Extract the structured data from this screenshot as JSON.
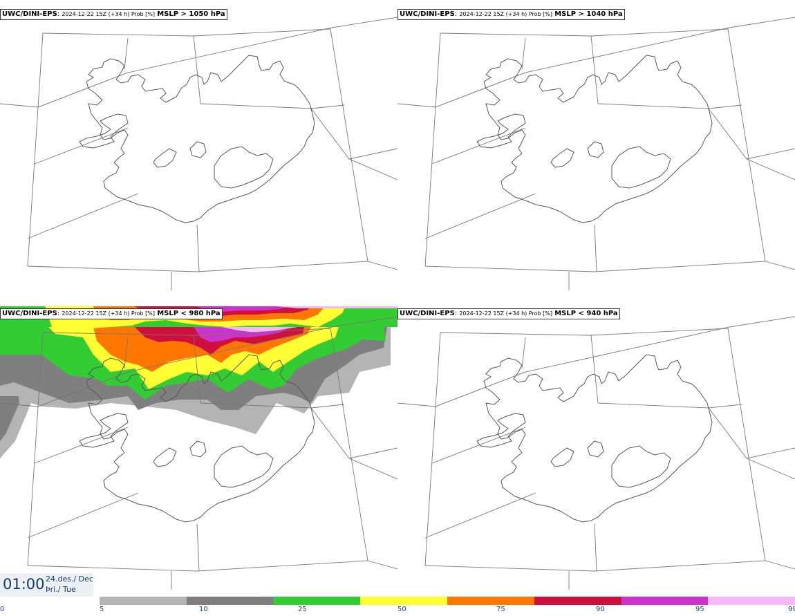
{
  "panels": [
    {
      "model": "UWC/DINI-EPS",
      "meta": "2024-12-22 15Z (+34 h) Prob [%]",
      "var": "MSLP > 1050 hPa"
    },
    {
      "model": "UWC/DINI-EPS",
      "meta": "2024-12-22 15Z (+34 h) Prob [%]",
      "var": "MSLP > 1040 hPa"
    },
    {
      "model": "UWC/DINI-EPS",
      "meta": "2024-12-22 15Z (+34 h) Prob [%]",
      "var": "MSLP < 980 hPa"
    },
    {
      "model": "UWC/DINI-EPS",
      "meta": "2024-12-22 15Z (+34 h) Prob [%]",
      "var": "MSLP < 940 hPa"
    }
  ],
  "valid_time": {
    "time": "01:00",
    "date_line1": "24.des./ Dec",
    "date_line2": "Þri./ Tue"
  },
  "colorbar": {
    "ticks": [
      "0",
      "5",
      "10",
      "25",
      "50",
      "75",
      "90",
      "95",
      "99"
    ],
    "colors": [
      "#b4b4b4",
      "#7f7f7f",
      "#33cc33",
      "#ffff33",
      "#ff7700",
      "#d0103c",
      "#cc33cc",
      "#f8b8f8"
    ]
  },
  "colors": {
    "coast": "#555555",
    "grid": "#777777"
  }
}
